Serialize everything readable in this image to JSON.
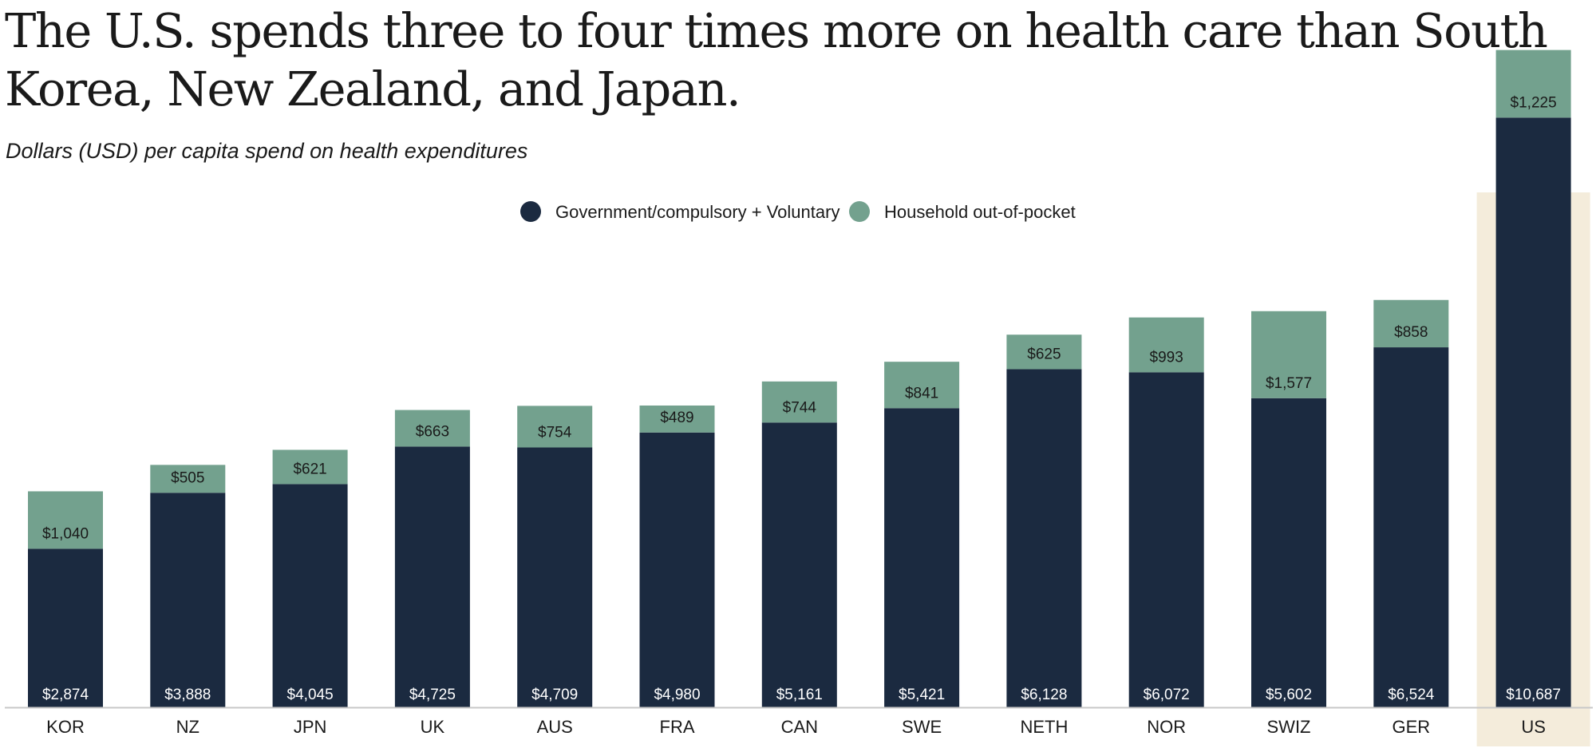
{
  "title": "The U.S. spends three to four times more on health care than South Korea, New Zealand, and Japan.",
  "subtitle": "Dollars (USD) per capita spend on health expenditures",
  "colors": {
    "government": "#1b2a40",
    "household": "#73a18e",
    "highlight_bg": "#f4ecdb",
    "axis": "#c8c8c8",
    "label_light": "#ffffff",
    "label_dark": "#1a1a1a"
  },
  "chart_data": {
    "type": "bar",
    "stacked": true,
    "title": "The U.S. spends three to four times more on health care than South Korea, New Zealand, and Japan.",
    "subtitle": "Dollars (USD) per capita spend on health expenditures",
    "xlabel": "",
    "ylabel": "",
    "ylim": [
      0,
      12500
    ],
    "grid": false,
    "legend_position": "top-center",
    "highlight_category": "US",
    "categories": [
      "KOR",
      "NZ",
      "JPN",
      "UK",
      "AUS",
      "FRA",
      "CAN",
      "SWE",
      "NETH",
      "NOR",
      "SWIZ",
      "GER",
      "US"
    ],
    "series": [
      {
        "name": "Government/compulsory + Voluntary",
        "values": [
          2874,
          3888,
          4045,
          4725,
          4709,
          4980,
          5161,
          5421,
          6128,
          6072,
          5602,
          6524,
          10687
        ],
        "labels": [
          "$2,874",
          "$3,888",
          "$4,045",
          "$4,725",
          "$4,709",
          "$4,980",
          "$5,161",
          "$5,421",
          "$6,128",
          "$6,072",
          "$5,602",
          "$6,524",
          "$10,687"
        ]
      },
      {
        "name": "Household out-of-pocket",
        "values": [
          1040,
          505,
          621,
          663,
          754,
          489,
          744,
          841,
          625,
          993,
          1577,
          858,
          1225
        ],
        "labels": [
          "$1,040",
          "$505",
          "$621",
          "$663",
          "$754",
          "$489",
          "$744",
          "$841",
          "$625",
          "$993",
          "$1,577",
          "$858",
          "$1,225"
        ]
      }
    ]
  }
}
